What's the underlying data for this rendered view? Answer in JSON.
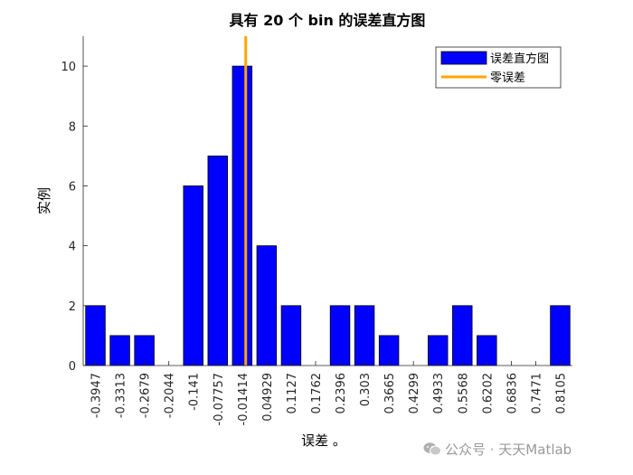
{
  "chart_data": {
    "type": "bar",
    "title": "具有 20 个 bin 的误差直方图",
    "xlabel": "误差 。",
    "ylabel": "实例",
    "categories": [
      "-0.3947",
      "-0.3313",
      "-0.2679",
      "-0.2044",
      "-0.141",
      "-0.07757",
      "-0.01414",
      "0.04929",
      "0.1127",
      "0.1762",
      "0.2396",
      "0.303",
      "0.3665",
      "0.4299",
      "0.4933",
      "0.5568",
      "0.6202",
      "0.6836",
      "0.7471",
      "0.8105"
    ],
    "series": [
      {
        "name": "误差直方图",
        "values": [
          2,
          1,
          1,
          0,
          6,
          7,
          10,
          4,
          2,
          0,
          2,
          2,
          1,
          0,
          1,
          2,
          1,
          0,
          0,
          2
        ],
        "color": "#0000ff"
      }
    ],
    "zero_error_line": {
      "name": "零误差",
      "x": -0.005,
      "color": "#ffa500"
    },
    "ylim": [
      0,
      11
    ],
    "yticks": [
      0,
      2,
      4,
      6,
      8,
      10
    ],
    "grid": false,
    "legend": "top-right"
  },
  "watermark": {
    "text": "公众号 · 天天Matlab",
    "icon": "wechat-icon"
  }
}
